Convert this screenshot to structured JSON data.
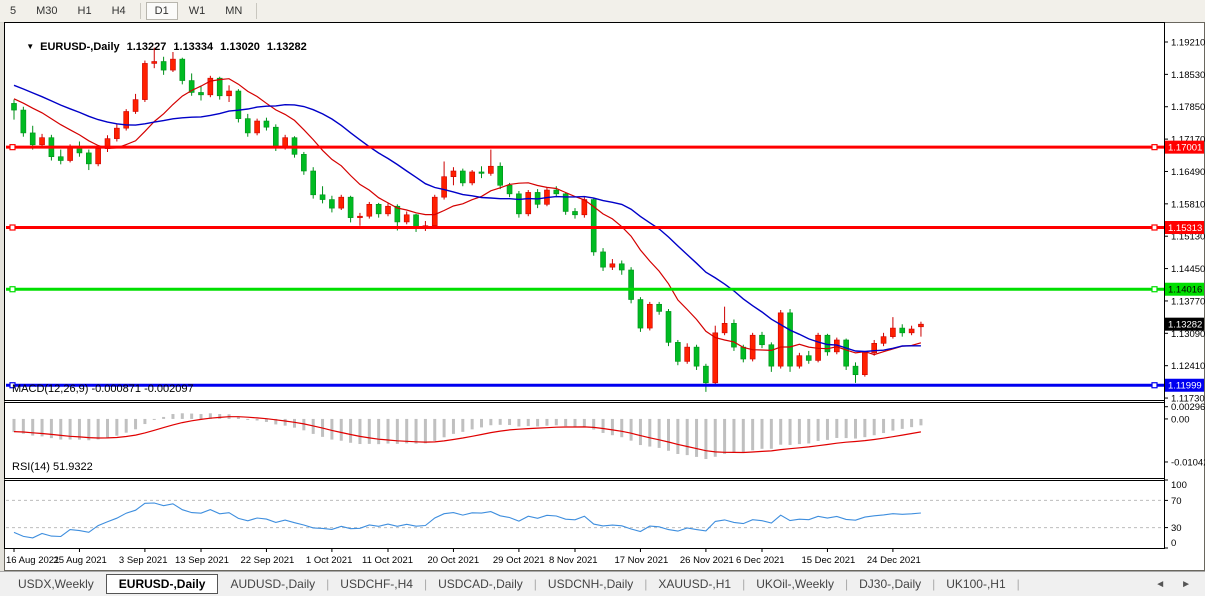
{
  "toolbar": {
    "items": [
      {
        "label": "5",
        "active": false
      },
      {
        "label": "M30",
        "active": false
      },
      {
        "label": "H1",
        "active": false
      },
      {
        "label": "H4",
        "active": false
      },
      {
        "label": "D1",
        "active": true
      },
      {
        "label": "W1",
        "active": false
      },
      {
        "label": "MN",
        "active": false
      }
    ]
  },
  "window": {
    "title": {
      "collapse_icon": "▼",
      "symbol": "EURUSD-,Daily",
      "open": "1.13227",
      "high": "1.13334",
      "low": "1.13020",
      "close": "1.13282"
    }
  },
  "chart_data": {
    "type": "candlestick",
    "title": "EURUSD-,Daily",
    "x_labels": [
      "16 Aug 2021",
      "25 Aug 2021",
      "3 Sep 2021",
      "13 Sep 2021",
      "22 Sep 2021",
      "1 Oct 2021",
      "11 Oct 2021",
      "20 Oct 2021",
      "29 Oct 2021",
      "8 Nov 2021",
      "17 Nov 2021",
      "26 Nov 2021",
      "6 Dec 2021",
      "15 Dec 2021",
      "24 Dec 2021"
    ],
    "x_label_indices": [
      0,
      7,
      14,
      20,
      27,
      34,
      40,
      47,
      54,
      60,
      67,
      74,
      80,
      87,
      94
    ],
    "y_axis_ticks": [
      "1.19210",
      "1.18530",
      "1.17850",
      "1.17170",
      "1.16490",
      "1.15810",
      "1.15130",
      "1.14450",
      "1.13770",
      "1.13090",
      "1.12410",
      "1.11730"
    ],
    "y_range": [
      1.11688,
      1.19588
    ],
    "candles": [
      [
        1.1792,
        1.18,
        1.1758,
        1.1778
      ],
      [
        1.1778,
        1.1785,
        1.1722,
        1.173
      ],
      [
        1.173,
        1.1745,
        1.1695,
        1.1705
      ],
      [
        1.1705,
        1.1728,
        1.1698,
        1.172
      ],
      [
        1.172,
        1.1726,
        1.1672,
        1.168
      ],
      [
        1.168,
        1.1695,
        1.1664,
        1.1672
      ],
      [
        1.1672,
        1.1706,
        1.1668,
        1.17
      ],
      [
        1.17,
        1.1712,
        1.168,
        1.1688
      ],
      [
        1.1688,
        1.1695,
        1.1652,
        1.1665
      ],
      [
        1.1665,
        1.1702,
        1.166,
        1.1697
      ],
      [
        1.1697,
        1.1725,
        1.169,
        1.1718
      ],
      [
        1.1718,
        1.1748,
        1.1712,
        1.174
      ],
      [
        1.174,
        1.178,
        1.1735,
        1.1775
      ],
      [
        1.1775,
        1.1812,
        1.177,
        1.18
      ],
      [
        1.18,
        1.1882,
        1.1795,
        1.1876
      ],
      [
        1.1876,
        1.1909,
        1.1866,
        1.188
      ],
      [
        1.188,
        1.189,
        1.1852,
        1.1862
      ],
      [
        1.1862,
        1.19,
        1.1858,
        1.1885
      ],
      [
        1.1885,
        1.1888,
        1.1832,
        1.184
      ],
      [
        1.184,
        1.1855,
        1.1808,
        1.1815
      ],
      [
        1.1815,
        1.1828,
        1.1798,
        1.181
      ],
      [
        1.181,
        1.185,
        1.1805,
        1.1845
      ],
      [
        1.1845,
        1.1848,
        1.18,
        1.1808
      ],
      [
        1.1808,
        1.183,
        1.1795,
        1.1818
      ],
      [
        1.1818,
        1.1822,
        1.1752,
        1.176
      ],
      [
        1.176,
        1.177,
        1.1722,
        1.173
      ],
      [
        1.173,
        1.176,
        1.1725,
        1.1755
      ],
      [
        1.1755,
        1.1762,
        1.1735,
        1.1742
      ],
      [
        1.1742,
        1.1748,
        1.1692,
        1.17
      ],
      [
        1.17,
        1.1726,
        1.1695,
        1.172
      ],
      [
        1.172,
        1.1723,
        1.1678,
        1.1685
      ],
      [
        1.1685,
        1.169,
        1.1642,
        1.165
      ],
      [
        1.165,
        1.1658,
        1.1592,
        1.16
      ],
      [
        1.16,
        1.1618,
        1.1582,
        1.159
      ],
      [
        1.159,
        1.1598,
        1.1563,
        1.1572
      ],
      [
        1.1572,
        1.16,
        1.1568,
        1.1595
      ],
      [
        1.1595,
        1.1598,
        1.1542,
        1.1552
      ],
      [
        1.1552,
        1.1562,
        1.1535,
        1.1555
      ],
      [
        1.1555,
        1.1585,
        1.155,
        1.158
      ],
      [
        1.158,
        1.1583,
        1.1552,
        1.156
      ],
      [
        1.156,
        1.1582,
        1.1555,
        1.1576
      ],
      [
        1.1576,
        1.158,
        1.1525,
        1.1543
      ],
      [
        1.1543,
        1.1565,
        1.1538,
        1.1558
      ],
      [
        1.1558,
        1.156,
        1.1522,
        1.153
      ],
      [
        1.153,
        1.1545,
        1.1524,
        1.1535
      ],
      [
        1.1535,
        1.16,
        1.153,
        1.1595
      ],
      [
        1.1595,
        1.167,
        1.159,
        1.1638
      ],
      [
        1.1638,
        1.1658,
        1.162,
        1.165
      ],
      [
        1.165,
        1.1655,
        1.1618,
        1.1625
      ],
      [
        1.1625,
        1.1652,
        1.162,
        1.1648
      ],
      [
        1.1648,
        1.166,
        1.1635,
        1.1645
      ],
      [
        1.1645,
        1.1695,
        1.164,
        1.166
      ],
      [
        1.166,
        1.1668,
        1.1612,
        1.162
      ],
      [
        1.162,
        1.1625,
        1.1595,
        1.1602
      ],
      [
        1.1602,
        1.1608,
        1.1552,
        1.156
      ],
      [
        1.156,
        1.161,
        1.1555,
        1.1605
      ],
      [
        1.1605,
        1.1612,
        1.1572,
        1.158
      ],
      [
        1.158,
        1.1615,
        1.1576,
        1.161
      ],
      [
        1.161,
        1.1618,
        1.1595,
        1.1602
      ],
      [
        1.1602,
        1.1605,
        1.1558,
        1.1565
      ],
      [
        1.1565,
        1.1572,
        1.155,
        1.1558
      ],
      [
        1.1558,
        1.1595,
        1.1552,
        1.159
      ],
      [
        1.159,
        1.1592,
        1.1472,
        1.148
      ],
      [
        1.148,
        1.1488,
        1.144,
        1.1448
      ],
      [
        1.1448,
        1.1465,
        1.1442,
        1.1455
      ],
      [
        1.1455,
        1.1462,
        1.1432,
        1.1442
      ],
      [
        1.1442,
        1.1448,
        1.1372,
        1.138
      ],
      [
        1.138,
        1.1385,
        1.1312,
        1.132
      ],
      [
        1.132,
        1.1375,
        1.1315,
        1.137
      ],
      [
        1.137,
        1.1375,
        1.1348,
        1.1355
      ],
      [
        1.1355,
        1.136,
        1.1282,
        1.129
      ],
      [
        1.129,
        1.1295,
        1.1242,
        1.125
      ],
      [
        1.125,
        1.1288,
        1.1245,
        1.128
      ],
      [
        1.128,
        1.1285,
        1.1232,
        1.124
      ],
      [
        1.124,
        1.1245,
        1.1186,
        1.1205
      ],
      [
        1.1205,
        1.1325,
        1.12,
        1.131
      ],
      [
        1.131,
        1.1365,
        1.1305,
        1.133
      ],
      [
        1.133,
        1.1338,
        1.1272,
        1.128
      ],
      [
        1.128,
        1.1285,
        1.1248,
        1.1255
      ],
      [
        1.1255,
        1.131,
        1.125,
        1.1305
      ],
      [
        1.1305,
        1.1312,
        1.1278,
        1.1285
      ],
      [
        1.1285,
        1.129,
        1.1228,
        1.124
      ],
      [
        1.124,
        1.1358,
        1.1235,
        1.1352
      ],
      [
        1.1352,
        1.136,
        1.1228,
        1.124
      ],
      [
        1.124,
        1.1268,
        1.1235,
        1.1262
      ],
      [
        1.1262,
        1.1272,
        1.1245,
        1.1252
      ],
      [
        1.1252,
        1.131,
        1.1248,
        1.1305
      ],
      [
        1.1305,
        1.1308,
        1.1262,
        1.127
      ],
      [
        1.127,
        1.13,
        1.1265,
        1.1295
      ],
      [
        1.1295,
        1.1298,
        1.1232,
        1.124
      ],
      [
        1.124,
        1.1248,
        1.1205,
        1.1222
      ],
      [
        1.1222,
        1.1272,
        1.1218,
        1.1268
      ],
      [
        1.1268,
        1.1295,
        1.1262,
        1.1288
      ],
      [
        1.1288,
        1.131,
        1.1282,
        1.1302
      ],
      [
        1.1302,
        1.1343,
        1.1298,
        1.132
      ],
      [
        1.132,
        1.1328,
        1.1302,
        1.131
      ],
      [
        1.131,
        1.1325,
        1.1305,
        1.1318
      ],
      [
        1.13227,
        1.13334,
        1.1302,
        1.13282
      ]
    ],
    "warmup_closes": [
      1.1948,
      1.194,
      1.1926,
      1.1918,
      1.1929,
      1.1912,
      1.19,
      1.1907,
      1.189,
      1.1879,
      1.1886,
      1.1868,
      1.1856,
      1.1862,
      1.1848,
      1.1836,
      1.1843,
      1.1828,
      1.1816,
      1.1822,
      1.181,
      1.1817,
      1.1805,
      1.1798,
      1.1807,
      1.1795,
      1.1789,
      1.1796
    ],
    "overlays": {
      "ma_fast": {
        "period": 10,
        "color": "#D40000"
      },
      "ma_slow": {
        "period": 21,
        "color": "#0000C8"
      }
    },
    "hlines": [
      {
        "value": 1.17001,
        "label": "1.17001",
        "color": "#FF0000",
        "badge_text": "#FFFFFF"
      },
      {
        "value": 1.15313,
        "label": "1.15313",
        "color": "#FF0000",
        "badge_text": "#FFFFFF"
      },
      {
        "value": 1.14016,
        "label": "1.14016",
        "color": "#00DF00",
        "badge_text": "#000000"
      },
      {
        "value": 1.11999,
        "label": "1.11999",
        "color": "#0000F0",
        "badge_text": "#FFFFFF"
      }
    ],
    "last_price": {
      "value": 1.13282,
      "label": "1.13282",
      "badge_color": "#000000",
      "badge_text": "#FFFFFF"
    },
    "indicators": [
      {
        "name": "MACD",
        "label": "MACD(12,26,9) -0.000871 -0.002097",
        "params": [
          12,
          26,
          9
        ],
        "value_range": [
          -0.0143,
          0.0041
        ],
        "axis_labels": [
          {
            "value": 0.00296,
            "label": "0.00296"
          },
          {
            "value": 0,
            "label": "0.00"
          },
          {
            "value": -0.01042,
            "label": "-0.01042"
          }
        ],
        "histogram_color": "#C0C0C0",
        "signal_color": "#E00000"
      },
      {
        "name": "RSI",
        "label": "RSI(14) 51.9322",
        "period": 14,
        "range": [
          0,
          100
        ],
        "levels": [
          70,
          30
        ],
        "axis_labels": [
          {
            "value": 100,
            "label": "100"
          },
          {
            "value": 70,
            "label": "70"
          },
          {
            "value": 30,
            "label": "30"
          },
          {
            "value": 0,
            "label": "0"
          }
        ],
        "line_color": "#3E8EDE"
      }
    ],
    "candle_colors": {
      "up_fill": "#FF2000",
      "up_border": "#CC0000",
      "down_fill": "#00BB22",
      "down_border": "#008F1A"
    }
  },
  "tabs": {
    "items": [
      {
        "label": "USDX,Weekly",
        "active": false
      },
      {
        "label": "EURUSD-,Daily",
        "active": true
      },
      {
        "label": "AUDUSD-,Daily",
        "active": false
      },
      {
        "label": "USDCHF-,H4",
        "active": false
      },
      {
        "label": "USDCAD-,Daily",
        "active": false
      },
      {
        "label": "USDCNH-,Daily",
        "active": false
      },
      {
        "label": "XAUUSD-,H1",
        "active": false
      },
      {
        "label": "UKOil-,Weekly",
        "active": false
      },
      {
        "label": "DJ30-,Daily",
        "active": false
      },
      {
        "label": "UK100-,H1",
        "active": false
      }
    ],
    "scroll_left": "◄",
    "scroll_right": "►"
  }
}
